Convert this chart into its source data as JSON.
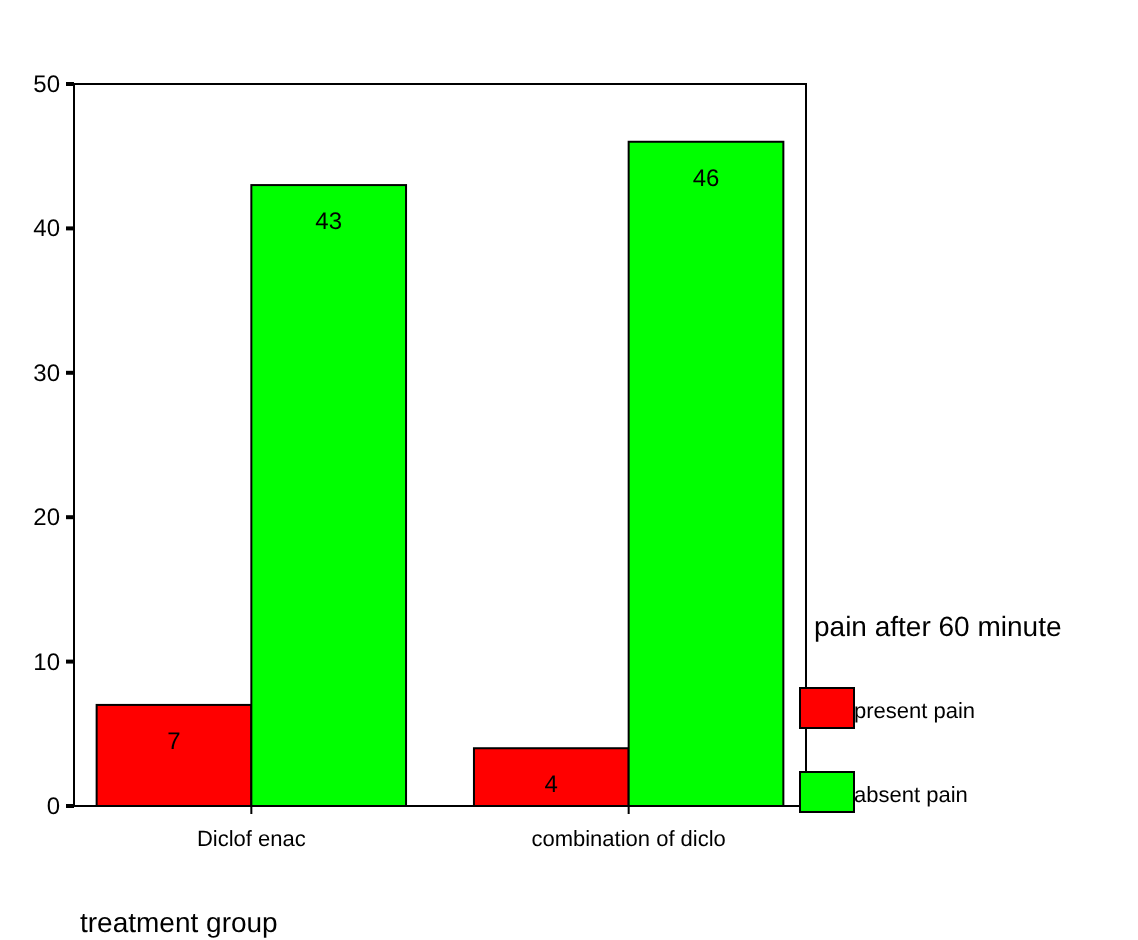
{
  "chart_data": {
    "type": "bar",
    "xlabel": "treatment group",
    "legend_title": "pain after 60 minute",
    "categories": [
      "Diclof enac",
      "combination of diclo"
    ],
    "series": [
      {
        "name": "present pain",
        "color": "#ff0000",
        "values": [
          7,
          4
        ]
      },
      {
        "name": "absent pain",
        "color": "#00ff00",
        "values": [
          43,
          46
        ]
      }
    ],
    "ylim": [
      0,
      50
    ],
    "yticks": [
      0,
      10,
      20,
      30,
      40,
      50
    ],
    "data_labels": true,
    "legend": "right",
    "grid": false
  }
}
